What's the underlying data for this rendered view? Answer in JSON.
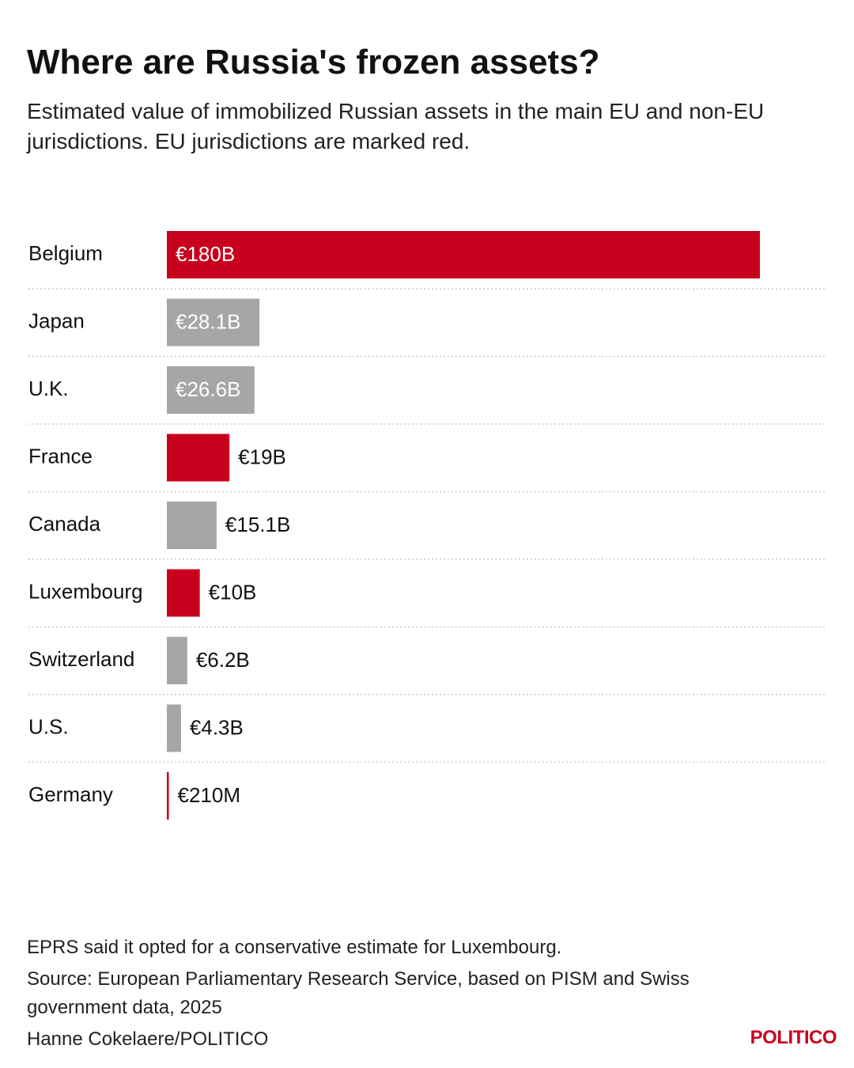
{
  "header": {
    "title": "Where are Russia's frozen assets?",
    "subtitle": "Estimated value of immobilized Russian assets in the main EU and non-EU jurisdictions. EU jurisdictions are marked red."
  },
  "chart_data": {
    "type": "bar",
    "orientation": "horizontal",
    "title": "Where are Russia's frozen assets?",
    "unit": "€ billions",
    "categories": [
      "Belgium",
      "Japan",
      "U.K.",
      "France",
      "Canada",
      "Luxembourg",
      "Switzerland",
      "U.S.",
      "Germany"
    ],
    "values": [
      180,
      28.1,
      26.6,
      19,
      15.1,
      10,
      6.2,
      4.3,
      0.21
    ],
    "labels": [
      "€180B",
      "€28.1B",
      "€26.6B",
      "€19B",
      "€15.1B",
      "€10B",
      "€6.2B",
      "€4.3B",
      "€210M"
    ],
    "eu_member": [
      true,
      false,
      false,
      true,
      false,
      true,
      false,
      false,
      true
    ],
    "xlim": [
      0,
      180
    ],
    "grid": false,
    "colors": {
      "eu": "#c8001e",
      "non_eu": "#a6a6a6",
      "separator": "#cccccc"
    }
  },
  "footer": {
    "note": "EPRS said it opted for a conservative estimate for Luxembourg.",
    "source": "Source: European Parliamentary Research Service, based on PISM and Swiss government data, 2025",
    "credit": "Hanne Cokelaere/POLITICO",
    "brand": "POLITICO"
  }
}
